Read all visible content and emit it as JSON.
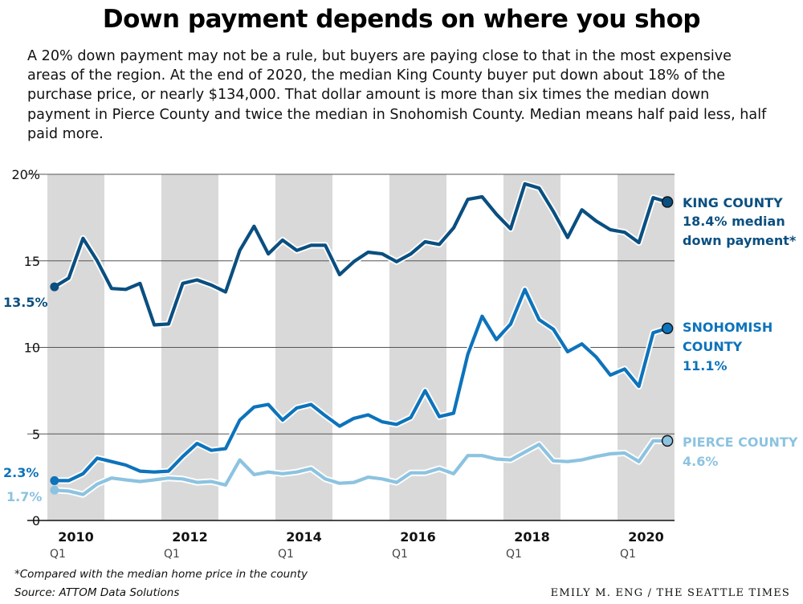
{
  "chart_data": {
    "type": "line",
    "title": "Down payment depends on where you shop",
    "subtitle": "A 20% down payment may not be a rule, but buyers are paying close to that in the most expensive areas of the region. At the end of 2020, the median King County buyer put down about 18% of the purchase price, or nearly $134,000. That dollar amount is more than six times the median down payment in Pierce County and twice the median in Snohomish County. Median means half paid less, half paid more.",
    "x_unit": "quarter",
    "x_start": "2010 Q1",
    "x_end": "2020 Q4",
    "ylim": [
      0,
      20
    ],
    "y_ticks": [
      0,
      5,
      10,
      15,
      20
    ],
    "y_tick_labels": [
      "0",
      "5",
      "10",
      "15",
      "20%"
    ],
    "x_tick_labels": [
      {
        "year": "2010",
        "quarter": "Q1"
      },
      {
        "year": "2012",
        "quarter": "Q1"
      },
      {
        "year": "2014",
        "quarter": "Q1"
      },
      {
        "year": "2016",
        "quarter": "Q1"
      },
      {
        "year": "2018",
        "quarter": "Q1"
      },
      {
        "year": "2020",
        "quarter": "Q1"
      }
    ],
    "grid": "horizontal",
    "shaded_bands": "alternating years (2010, 2012, 2014, 2016, 2018, 2020)",
    "series": [
      {
        "name": "KING COUNTY",
        "color": "#0a4f80",
        "label_lines": [
          "KING COUNTY",
          "18.4% median",
          "down payment*"
        ],
        "start_label": "13.5%",
        "values": [
          13.5,
          14.0,
          16.3,
          15.0,
          13.4,
          13.35,
          13.7,
          11.3,
          11.35,
          13.7,
          13.9,
          13.6,
          13.2,
          15.6,
          17.0,
          15.4,
          16.2,
          15.6,
          15.9,
          15.9,
          14.2,
          14.95,
          15.5,
          15.4,
          14.95,
          15.4,
          16.1,
          15.95,
          16.9,
          18.55,
          18.7,
          17.7,
          16.85,
          19.45,
          19.2,
          17.85,
          16.35,
          17.95,
          17.3,
          16.8,
          16.65,
          16.05,
          18.65,
          18.4
        ]
      },
      {
        "name": "SNOHOMISH COUNTY",
        "color": "#0d73bb",
        "label_lines": [
          "SNOHOMISH",
          "COUNTY",
          "11.1%"
        ],
        "start_label": "2.3%",
        "values": [
          2.3,
          2.3,
          2.7,
          3.6,
          3.4,
          3.2,
          2.85,
          2.8,
          2.85,
          3.7,
          4.45,
          4.05,
          4.15,
          5.8,
          6.55,
          6.7,
          5.8,
          6.5,
          6.7,
          6.05,
          5.45,
          5.9,
          6.1,
          5.7,
          5.55,
          5.95,
          7.5,
          6.0,
          6.2,
          9.6,
          11.8,
          10.45,
          11.35,
          13.35,
          11.6,
          11.05,
          9.75,
          10.2,
          9.45,
          8.4,
          8.75,
          7.75,
          10.85,
          11.1
        ]
      },
      {
        "name": "PIERCE COUNTY",
        "color": "#8cc3e0",
        "label_lines": [
          "PIERCE COUNTY",
          "4.6%"
        ],
        "start_label": "1.7%",
        "values": [
          1.75,
          1.7,
          1.5,
          2.1,
          2.45,
          2.35,
          2.25,
          2.35,
          2.45,
          2.4,
          2.2,
          2.25,
          2.05,
          3.5,
          2.65,
          2.8,
          2.7,
          2.8,
          3.0,
          2.4,
          2.15,
          2.2,
          2.5,
          2.4,
          2.2,
          2.75,
          2.75,
          3.0,
          2.7,
          3.75,
          3.75,
          3.55,
          3.5,
          3.95,
          4.4,
          3.45,
          3.4,
          3.5,
          3.7,
          3.85,
          3.9,
          3.4,
          4.6,
          4.6
        ]
      }
    ]
  },
  "footnote": "*Compared with the median home price in the county",
  "source": "Source: ATTOM Data Solutions",
  "credit": "EMILY M. ENG / THE SEATTLE TIMES"
}
